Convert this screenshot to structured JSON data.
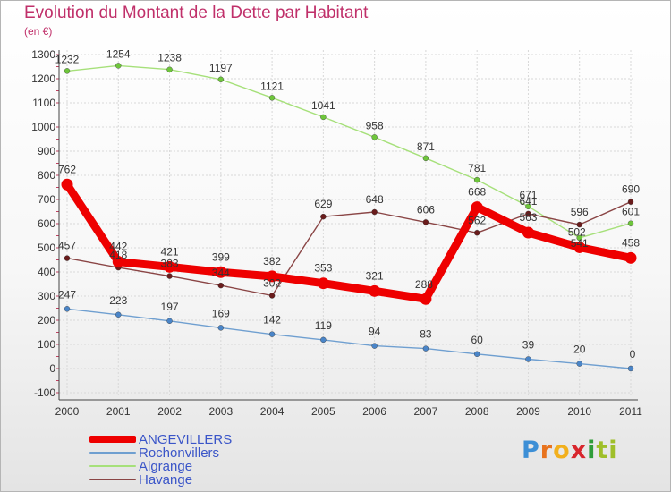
{
  "header": {
    "title": "Evolution du Montant de la Dette par Habitant",
    "subtitle": "(en €)"
  },
  "logo": {
    "text": "Proxiti",
    "letters": [
      "P",
      "r",
      "o",
      "x",
      "i",
      "t",
      "i"
    ],
    "colors": [
      "#3d8fd6",
      "#e8731e",
      "#f2b01d",
      "#d8262d",
      "#2f9d3a",
      "#9fbf2a",
      "#9fbf2a"
    ]
  },
  "chart_data": {
    "type": "line",
    "title": "Evolution du Montant de la Dette par Habitant",
    "subtitle": "(en €)",
    "xlabel": "",
    "ylabel": "",
    "x": [
      "2000",
      "2001",
      "2002",
      "2003",
      "2004",
      "2005",
      "2006",
      "2007",
      "2008",
      "2009",
      "2010",
      "2011"
    ],
    "ylim": [
      -100,
      1300
    ],
    "yticks": [
      "-100",
      "0",
      "100",
      "200",
      "300",
      "400",
      "500",
      "600",
      "700",
      "800",
      "900",
      "1000",
      "1100",
      "1200",
      "1300"
    ],
    "grid": true,
    "legend_position": "bottom-left",
    "series": [
      {
        "name": "ANGEVILLERS",
        "color": "#ee0000",
        "dot": "#ee0000",
        "values": [
          762,
          442,
          421,
          399,
          382,
          353,
          321,
          288,
          668,
          563,
          502,
          458
        ],
        "labels": [
          "762",
          "442",
          "421",
          "399",
          "382",
          "353",
          "321",
          "288",
          "668",
          "563",
          "502",
          "458"
        ]
      },
      {
        "name": "Rochonvillers",
        "color": "#6f9fd0",
        "dot": "#4a85c8",
        "values": [
          247,
          223,
          197,
          169,
          142,
          119,
          94,
          83,
          60,
          39,
          20,
          0
        ],
        "labels": [
          "247",
          "223",
          "197",
          "169",
          "142",
          "119",
          "94",
          "83",
          "60",
          "39",
          "20",
          "0"
        ]
      },
      {
        "name": "Algrange",
        "color": "#a6e07a",
        "dot": "#6ec63b",
        "values": [
          1232,
          1254,
          1238,
          1197,
          1121,
          1041,
          958,
          871,
          781,
          671,
          541,
          601
        ],
        "labels": [
          "1232",
          "1254",
          "1238",
          "1197",
          "1121",
          "1041",
          "958",
          "871",
          "781",
          "671",
          "541",
          "601"
        ]
      },
      {
        "name": "Havange",
        "color": "#8a4545",
        "dot": "#6a1c1c",
        "values": [
          457,
          418,
          383,
          344,
          302,
          629,
          648,
          606,
          562,
          641,
          596,
          690
        ],
        "labels": [
          "457",
          "418",
          "383",
          "344",
          "302",
          "629",
          "648",
          "606",
          "562",
          "641",
          "596",
          "690"
        ]
      }
    ]
  }
}
